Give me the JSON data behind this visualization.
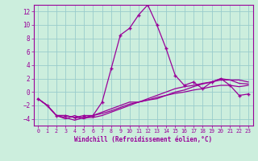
{
  "xlabel": "Windchill (Refroidissement éolien,°C)",
  "background_color": "#cceedd",
  "grid_color": "#99cccc",
  "line_color": "#990099",
  "hours": [
    0,
    1,
    2,
    3,
    4,
    5,
    6,
    7,
    8,
    9,
    10,
    11,
    12,
    13,
    14,
    15,
    16,
    17,
    18,
    19,
    20,
    21,
    22,
    23
  ],
  "ylim": [
    -5,
    13
  ],
  "xlim": [
    -0.5,
    23.5
  ],
  "yticks": [
    -4,
    -2,
    0,
    2,
    4,
    6,
    8,
    10,
    12
  ],
  "line1": [
    -1.0,
    -2.0,
    -3.5,
    -3.5,
    -3.8,
    -3.5,
    -3.5,
    -1.5,
    3.5,
    8.5,
    9.5,
    11.5,
    13.0,
    10.0,
    6.5,
    2.5,
    1.0,
    1.5,
    0.5,
    1.5,
    2.0,
    1.0,
    -0.5,
    -0.3
  ],
  "line2": [
    -1.0,
    -2.0,
    -3.5,
    -4.0,
    -3.5,
    -4.0,
    -3.5,
    -3.0,
    -2.5,
    -2.0,
    -1.5,
    -1.5,
    -1.2,
    -1.0,
    -0.5,
    -0.2,
    0.0,
    0.3,
    0.5,
    0.8,
    1.0,
    1.0,
    0.8,
    1.0
  ],
  "line3": [
    -1.0,
    -2.0,
    -3.5,
    -3.5,
    -3.8,
    -3.8,
    -3.5,
    -3.2,
    -2.8,
    -2.3,
    -1.8,
    -1.5,
    -1.2,
    -0.8,
    -0.5,
    0.0,
    0.3,
    0.8,
    1.2,
    1.5,
    1.8,
    1.8,
    1.8,
    1.5
  ],
  "line4": [
    -1.0,
    -2.0,
    -3.5,
    -3.8,
    -4.2,
    -3.8,
    -3.8,
    -3.5,
    -3.0,
    -2.5,
    -2.0,
    -1.5,
    -1.0,
    -0.5,
    0.0,
    0.5,
    0.8,
    1.0,
    1.3,
    1.5,
    2.0,
    1.8,
    1.3,
    1.2
  ]
}
